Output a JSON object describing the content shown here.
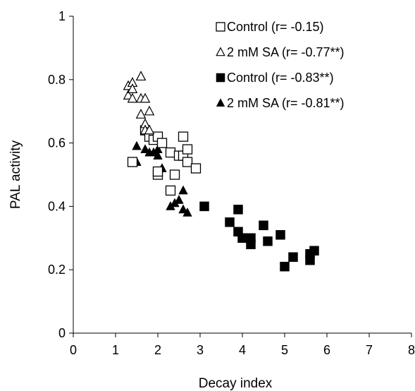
{
  "chart_data": {
    "type": "scatter",
    "title": "",
    "xlabel": "Decay index",
    "ylabel": "PAL activity",
    "xlim": [
      0,
      8
    ],
    "ylim": [
      0,
      1
    ],
    "x_ticks": [
      "0",
      "1",
      "2",
      "3",
      "4",
      "5",
      "6",
      "7",
      "8"
    ],
    "y_ticks": [
      "0",
      "0.2",
      "0.4",
      "0.6",
      "0.8",
      "1"
    ],
    "grid": false,
    "legend_position": "top-right",
    "series": [
      {
        "name": "Control (r= -0.15)",
        "marker": "square-open",
        "color": "#000000",
        "points": [
          [
            1.4,
            0.54
          ],
          [
            1.7,
            0.64
          ],
          [
            1.8,
            0.62
          ],
          [
            1.9,
            0.61
          ],
          [
            2.0,
            0.62
          ],
          [
            2.0,
            0.5
          ],
          [
            2.0,
            0.51
          ],
          [
            2.1,
            0.6
          ],
          [
            2.3,
            0.57
          ],
          [
            2.3,
            0.45
          ],
          [
            2.4,
            0.5
          ],
          [
            2.5,
            0.56
          ],
          [
            2.6,
            0.62
          ],
          [
            2.6,
            0.56
          ],
          [
            2.7,
            0.58
          ],
          [
            2.7,
            0.54
          ],
          [
            2.9,
            0.52
          ]
        ]
      },
      {
        "name": "2 mM SA (r= -0.77**)",
        "marker": "triangle-open",
        "color": "#000000",
        "points": [
          [
            1.3,
            0.78
          ],
          [
            1.3,
            0.75
          ],
          [
            1.4,
            0.79
          ],
          [
            1.4,
            0.77
          ],
          [
            1.4,
            0.74
          ],
          [
            1.6,
            0.81
          ],
          [
            1.6,
            0.74
          ],
          [
            1.6,
            0.69
          ],
          [
            1.7,
            0.74
          ],
          [
            1.7,
            0.66
          ],
          [
            1.7,
            0.64
          ],
          [
            1.8,
            0.7
          ],
          [
            1.8,
            0.64
          ]
        ]
      },
      {
        "name": "Control (r= -0.83**)",
        "marker": "square-filled",
        "color": "#000000",
        "points": [
          [
            3.1,
            0.4
          ],
          [
            3.7,
            0.35
          ],
          [
            3.9,
            0.39
          ],
          [
            3.9,
            0.32
          ],
          [
            4.0,
            0.3
          ],
          [
            4.1,
            0.3
          ],
          [
            4.2,
            0.28
          ],
          [
            4.2,
            0.3
          ],
          [
            4.5,
            0.34
          ],
          [
            4.6,
            0.29
          ],
          [
            4.9,
            0.31
          ],
          [
            5.0,
            0.21
          ],
          [
            5.2,
            0.24
          ],
          [
            5.6,
            0.25
          ],
          [
            5.6,
            0.23
          ],
          [
            5.7,
            0.26
          ]
        ]
      },
      {
        "name": "2 mM SA (r= -0.81**)",
        "marker": "triangle-filled",
        "color": "#000000",
        "points": [
          [
            1.5,
            0.59
          ],
          [
            1.5,
            0.54
          ],
          [
            1.7,
            0.58
          ],
          [
            1.8,
            0.57
          ],
          [
            1.9,
            0.57
          ],
          [
            2.0,
            0.58
          ],
          [
            2.0,
            0.56
          ],
          [
            2.1,
            0.52
          ],
          [
            2.3,
            0.4
          ],
          [
            2.4,
            0.41
          ],
          [
            2.5,
            0.42
          ],
          [
            2.6,
            0.45
          ],
          [
            2.6,
            0.39
          ],
          [
            2.7,
            0.38
          ]
        ]
      }
    ]
  }
}
